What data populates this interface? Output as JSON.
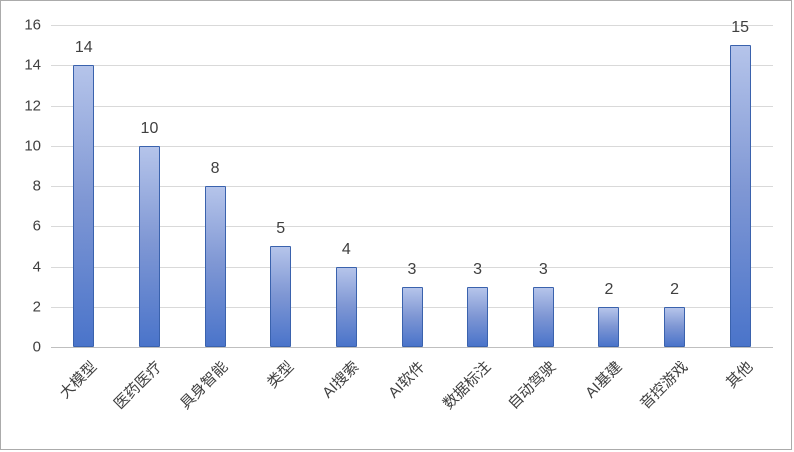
{
  "chart_data": {
    "type": "bar",
    "title": "",
    "xlabel": "",
    "ylabel": "",
    "categories": [
      "大模型",
      "医药医疗",
      "具身智能",
      "类型",
      "AI搜索",
      "AI软件",
      "数据标注",
      "自动驾驶",
      "AI基建",
      "音控游戏",
      "其他"
    ],
    "values": [
      14,
      10,
      8,
      5,
      4,
      3,
      3,
      3,
      2,
      2,
      15
    ],
    "data_labels_shown": true,
    "ylim": [
      0,
      16
    ],
    "ytick_step": 2,
    "ytick_labels": [
      "0",
      "2",
      "4",
      "6",
      "8",
      "10",
      "12",
      "14",
      "16"
    ],
    "grid": true,
    "legend": false,
    "xlabel_rotation_deg": -45,
    "colors": {
      "bar_fill_top": "#b5c4ea",
      "bar_fill_mid": "#7f97d4",
      "bar_fill_bottom": "#4a74ca",
      "bar_border": "#3a62ad",
      "gridline": "#d9d9d9",
      "axis_line": "#bfbfbf",
      "text": "#404040",
      "background": "#ffffff",
      "chart_border": "#ababab"
    }
  }
}
